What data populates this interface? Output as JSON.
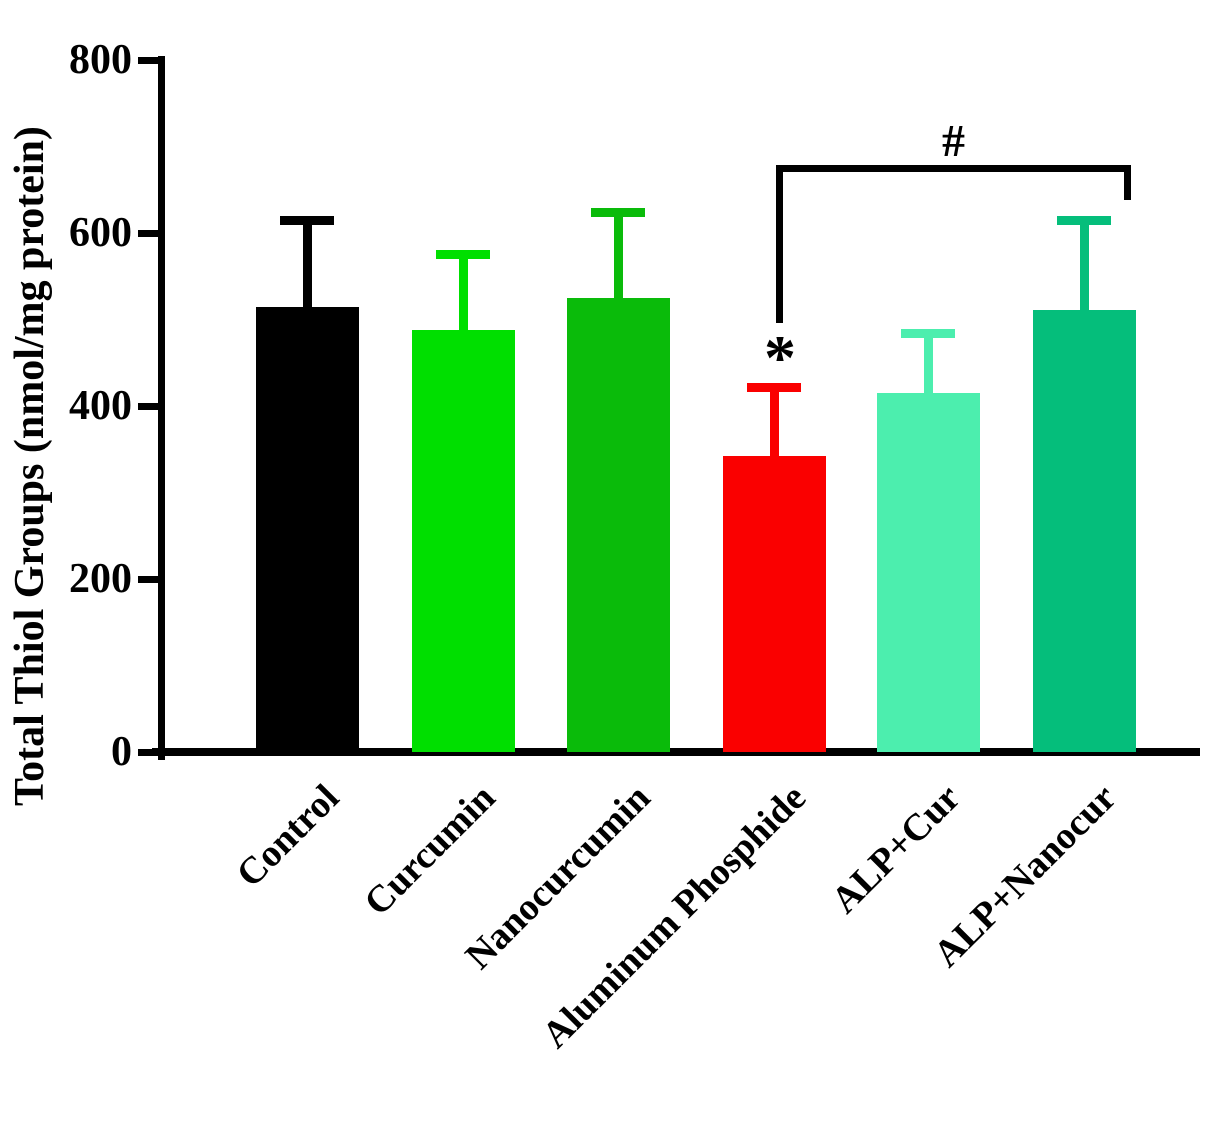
{
  "chart_data": {
    "type": "bar",
    "title": "",
    "ylabel": "Total Thiol Groups (nmol/mg protein)",
    "xlabel": "",
    "ylim": [
      0,
      800
    ],
    "yticks": [
      0,
      200,
      400,
      600,
      800
    ],
    "grid": false,
    "legend": null,
    "categories": [
      "Control",
      "Curcumin",
      "Nanocurcumin",
      "Aluminum Phosphide",
      "ALP+Cur",
      "ALP+Nanocur"
    ],
    "values": [
      515,
      488,
      525,
      342,
      415,
      511
    ],
    "error_sd": [
      100,
      87,
      99,
      79,
      69,
      104
    ],
    "error_top_values": [
      615,
      575,
      624,
      421,
      484,
      615
    ],
    "bar_colors": [
      "#000000",
      "#00DF00",
      "#0ABB0A",
      "#FA0000",
      "#4CEEAE",
      "#05BE7B"
    ],
    "axis_color": "#000000",
    "annotations": {
      "star": {
        "symbol": "*",
        "category": "Aluminum Phosphide"
      },
      "bracket": {
        "symbol": "#",
        "from": "Aluminum Phosphide",
        "to": "ALP+Nanocur"
      }
    }
  }
}
